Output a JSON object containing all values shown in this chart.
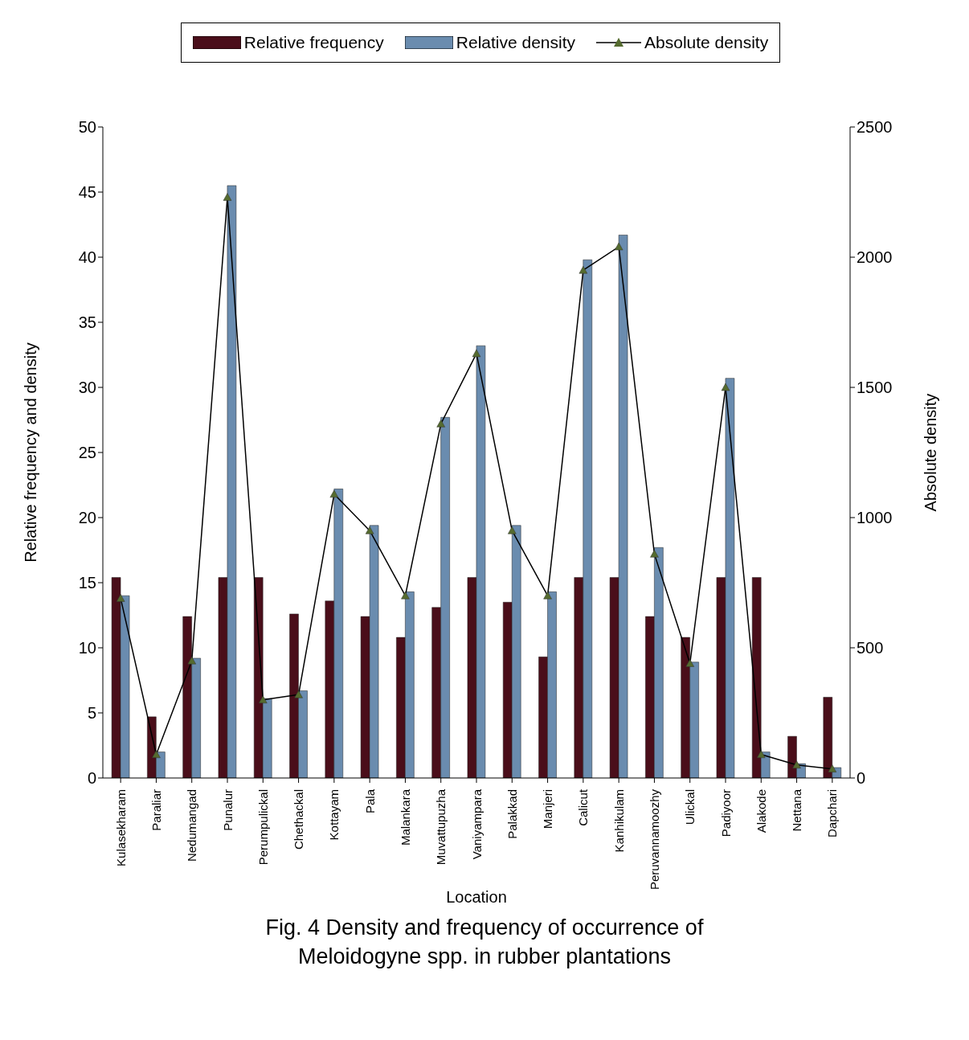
{
  "chart_data": {
    "type": "bar",
    "title": "Fig. 4 Density and frequency  of occurrence of\nMeloidogyne spp. in  rubber plantations",
    "xlabel": "Location",
    "ylabel": "Relative frequency and density",
    "y2label": "Absolute density",
    "categories": [
      "Kulasekharam",
      "Paraliar",
      "Nedumangad",
      "Punalur",
      "Perumpulickal",
      "Chethackal",
      "Kottayam",
      "Pala",
      "Malankara",
      "Muvattupuzha",
      "Vaniyampara",
      "Palakkad",
      "Manjeri",
      "Calicut",
      "Kanhikulam",
      "Peruvannamoozhy",
      "Ulickal",
      "Padiyoor",
      "Alakode",
      "Nettana",
      "Dapchari"
    ],
    "series": [
      {
        "name": "Relative frequency",
        "color": "#4a0e1a",
        "values": [
          15.4,
          4.7,
          12.4,
          15.4,
          15.4,
          12.6,
          13.6,
          12.4,
          10.8,
          13.1,
          15.4,
          13.5,
          9.3,
          15.4,
          15.4,
          12.4,
          10.8,
          15.4,
          15.4,
          3.2,
          6.2
        ]
      },
      {
        "name": "Relative density",
        "color": "#6a8caf",
        "values": [
          14.0,
          2.0,
          9.2,
          45.5,
          6.1,
          6.7,
          22.2,
          19.4,
          14.3,
          27.7,
          33.2,
          19.4,
          14.3,
          39.8,
          41.7,
          17.7,
          8.9,
          30.7,
          2.0,
          1.1,
          0.8
        ]
      },
      {
        "name": "Absolute  density",
        "type": "line",
        "axis": "y2",
        "color": "#556b2f",
        "marker": "triangle",
        "values": [
          690,
          90,
          450,
          2230,
          300,
          320,
          1090,
          950,
          700,
          1360,
          1630,
          950,
          700,
          1950,
          2040,
          860,
          440,
          1500,
          90,
          50,
          35
        ]
      }
    ],
    "ylim": [
      0,
      50
    ],
    "yticks": [
      0,
      5,
      10,
      15,
      20,
      25,
      30,
      35,
      40,
      45,
      50
    ],
    "y2lim": [
      0,
      2500
    ],
    "y2ticks": [
      0,
      500,
      1000,
      1500,
      2000,
      2500
    ],
    "grid": false,
    "legend": "top"
  }
}
